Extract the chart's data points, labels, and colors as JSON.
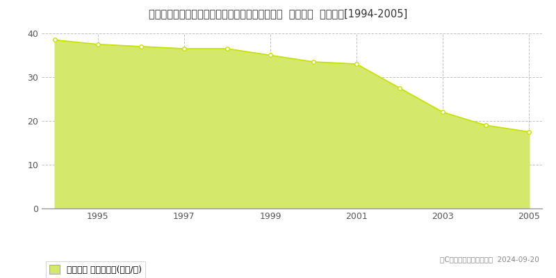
{
  "title": "愛知県知多郡南知多町大字師崎字神戸浦１７４番  公示地価  地価推移[1994-2005]",
  "years": [
    1994,
    1995,
    1996,
    1997,
    1998,
    1999,
    2000,
    2001,
    2002,
    2003,
    2004,
    2005
  ],
  "values": [
    38.5,
    37.5,
    37.0,
    36.5,
    36.5,
    35.0,
    33.5,
    33.0,
    27.5,
    22.0,
    19.0,
    17.5
  ],
  "fill_color": "#d4e96b",
  "fill_alpha": 1.0,
  "line_color": "#c8e000",
  "marker_color": "#c8e000",
  "marker_face": "#ffffff",
  "bg_color": "#ffffff",
  "plot_bg_color": "#ffffff",
  "grid_color": "#bbbbbb",
  "ylim": [
    0,
    40
  ],
  "yticks": [
    0,
    10,
    20,
    30,
    40
  ],
  "xtick_years": [
    1995,
    1997,
    1999,
    2001,
    2003,
    2005
  ],
  "legend_label": "公示地価 平均嵪単価(万円/嵪)",
  "copyright_text": "（C）土地価格ドットコム  2024-09-20",
  "title_fontsize": 10.5,
  "axis_fontsize": 9,
  "legend_fontsize": 9,
  "copyright_fontsize": 7.5
}
